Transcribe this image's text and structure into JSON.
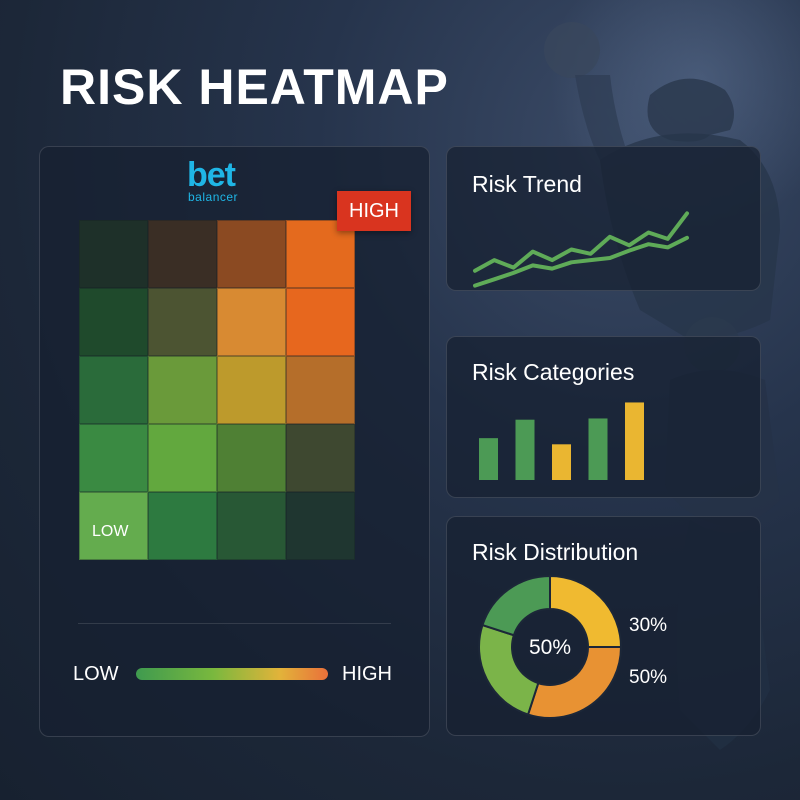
{
  "title": "RISK HEATMAP",
  "logo": {
    "main": "bet",
    "sub": "balancer"
  },
  "heatmap": {
    "high_badge": "HIGH",
    "low_cell_label": "LOW",
    "cells": [
      [
        "#1e3029",
        "#3a2e25",
        "#8b4a22",
        "#e46a1e"
      ],
      [
        "#1f4a2c",
        "#4c5432",
        "#d88a32",
        "#e7671e"
      ],
      [
        "#2a6b3a",
        "#6a9a3a",
        "#bd9a2c",
        "#b56e2a"
      ],
      [
        "#3a8a42",
        "#62a83e",
        "#4f8034",
        "#3e4830"
      ],
      [
        "#64ac4e",
        "#2d7a40",
        "#285835",
        "#1f3630"
      ]
    ],
    "legend": {
      "low": "LOW",
      "high": "HIGH"
    }
  },
  "trend": {
    "title": "Risk Trend",
    "color": "#5fab58",
    "series": [
      {
        "values": [
          2,
          3,
          2.3,
          3.8,
          3,
          4,
          3.6,
          5.2,
          4.4,
          5.6,
          5,
          7.4
        ]
      },
      {
        "values": [
          0.6,
          1.2,
          1.8,
          2.5,
          2.2,
          2.8,
          3,
          3.2,
          3.9,
          4.5,
          4.2,
          5.1
        ]
      }
    ]
  },
  "categories": {
    "title": "Risk Categories",
    "values": [
      3.4,
      4.9,
      2.9,
      5,
      6.3
    ],
    "colors": [
      "#4c9a55",
      "#4c9a55",
      "#eab631",
      "#4c9a55",
      "#eab631"
    ]
  },
  "distribution": {
    "title": "Risk Distribution",
    "center_label": "50%",
    "label_1": "30%",
    "label_2": "50%",
    "segments": [
      {
        "value": 25,
        "color": "#f0ba30"
      },
      {
        "value": 30,
        "color": "#e89233"
      },
      {
        "value": 25,
        "color": "#7bb449"
      },
      {
        "value": 20,
        "color": "#4c9a55"
      }
    ]
  }
}
